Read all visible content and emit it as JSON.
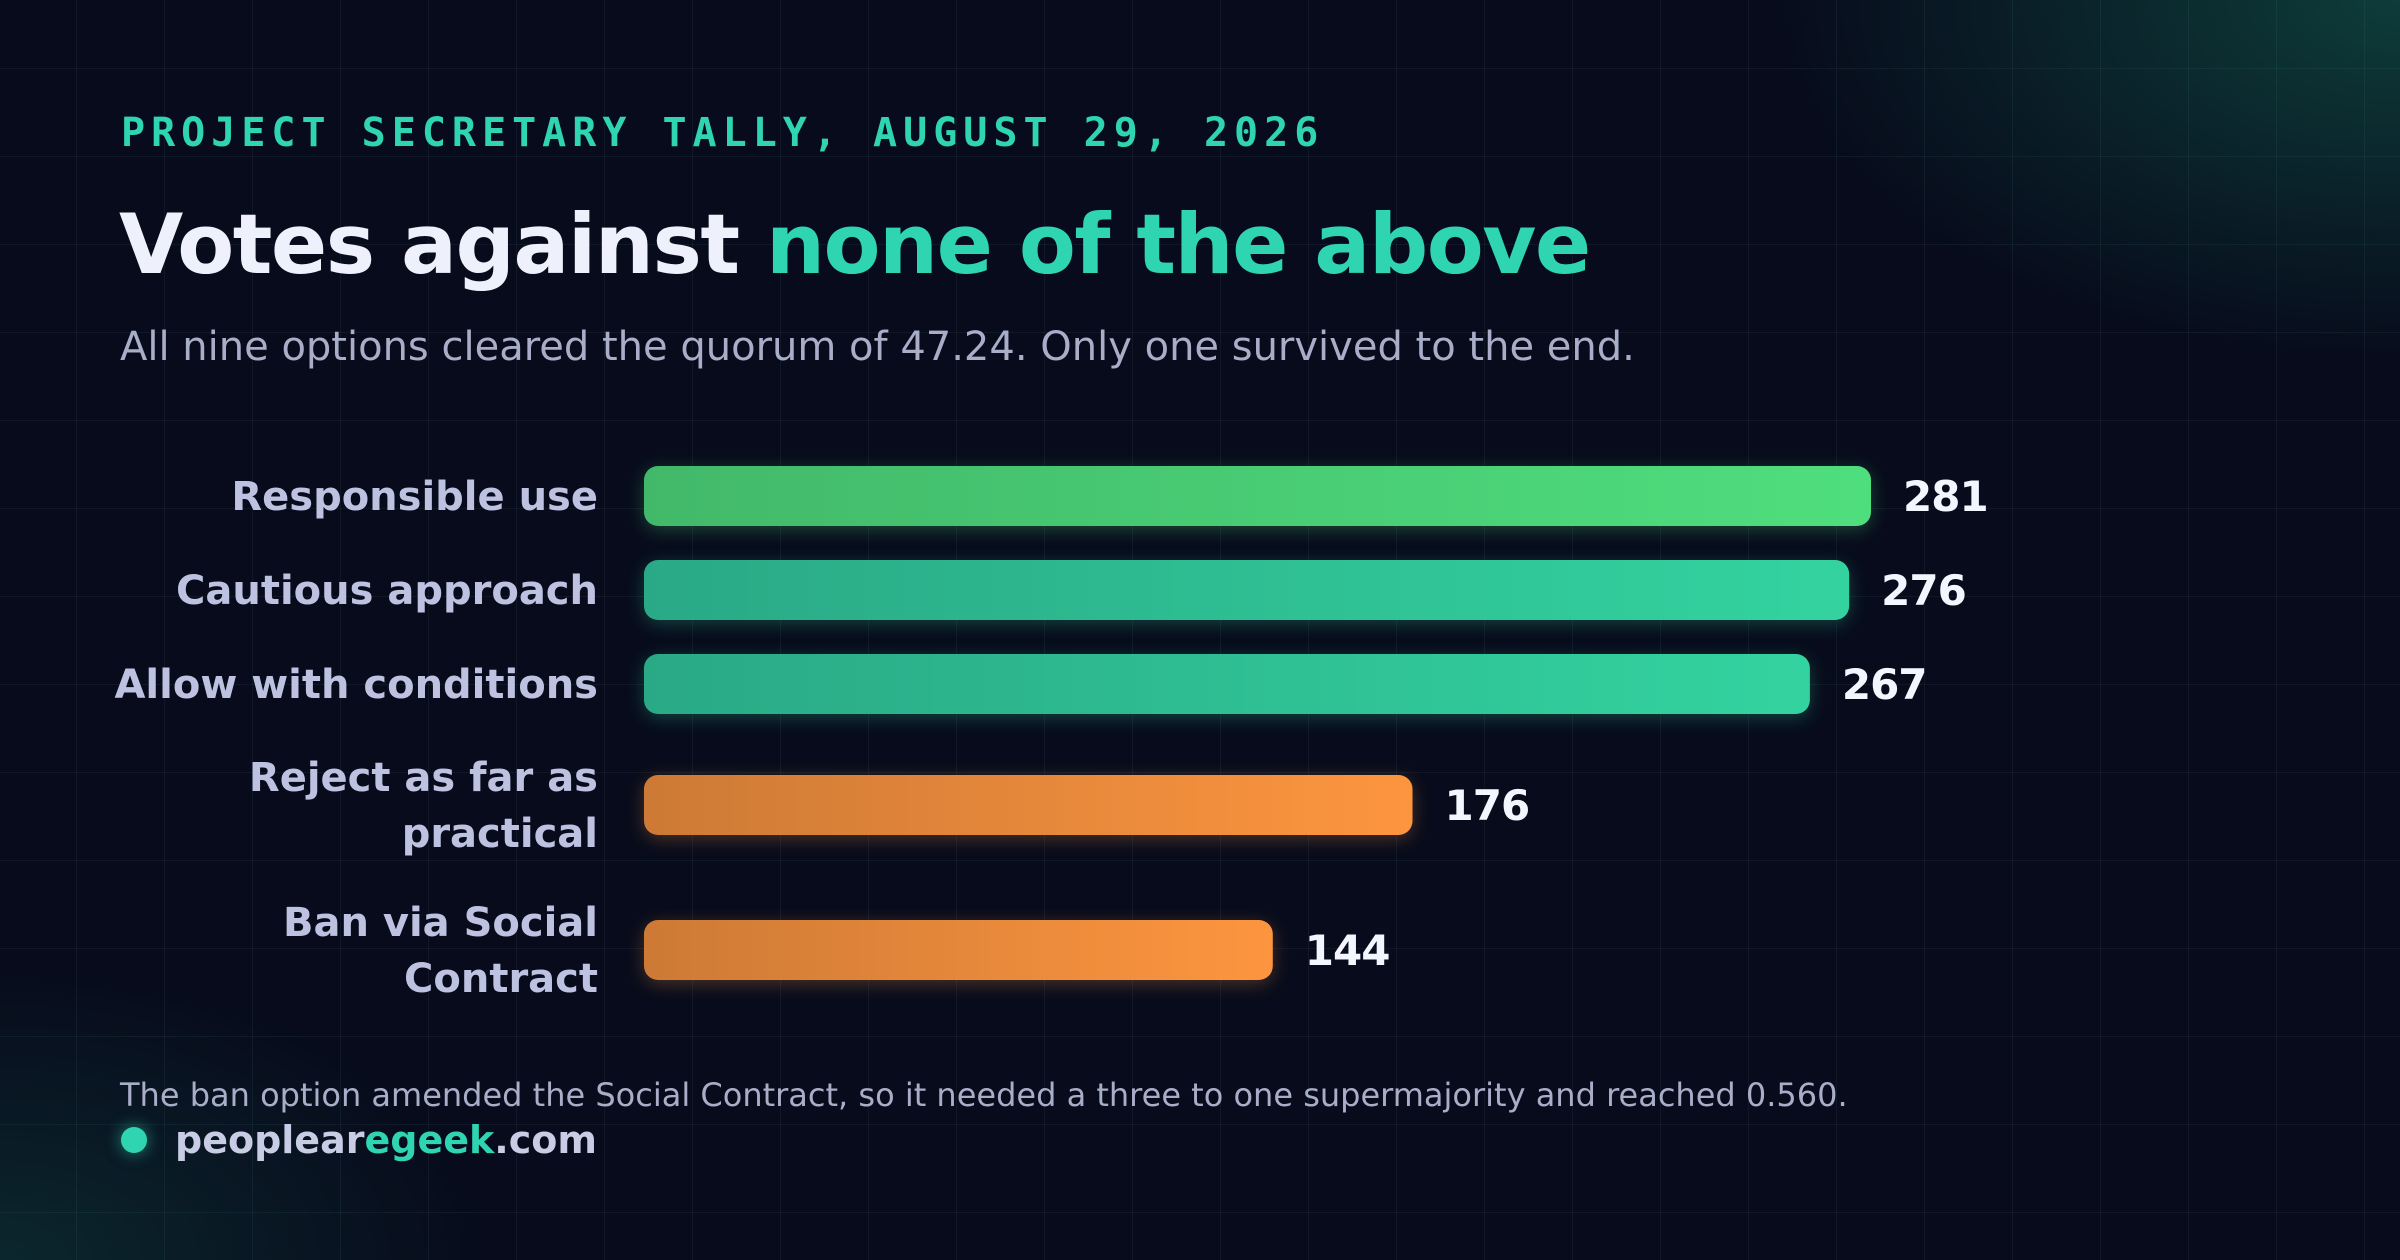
{
  "kicker": "PROJECT SECRETARY TALLY, AUGUST 29, 2026",
  "title": {
    "lead": "Votes against ",
    "accent": "none of the above"
  },
  "subtitle": "All nine options cleared the quorum of 47.24. Only one survived to the end.",
  "footnote": "The ban option amended the Social Contract, so it needed a three to one supermajority and reached 0.560.",
  "brand": {
    "pre": "peoplear",
    "hl": "egeek",
    "post": ".com"
  },
  "colors": {
    "green_top": [
      "#42b96a",
      "#4fde7e"
    ],
    "teal": [
      "#2aa986",
      "#33d39f"
    ],
    "orange": [
      "#cd7a36",
      "#fd953f"
    ],
    "accent": "#2fd4b0"
  },
  "chart_data": {
    "type": "bar",
    "orientation": "horizontal",
    "categories": [
      "Responsible use",
      "Cautious approach",
      "Allow with conditions",
      "Reject as far as practical",
      "Ban via Social Contract"
    ],
    "category_lines": [
      [
        "Responsible use"
      ],
      [
        "Cautious approach"
      ],
      [
        "Allow with conditions"
      ],
      [
        "Reject as far as",
        "practical"
      ],
      [
        "Ban via Social",
        "Contract"
      ]
    ],
    "values": [
      281,
      276,
      267,
      176,
      144
    ],
    "value_labels": [
      "281",
      "276",
      "267",
      "176",
      "144"
    ],
    "bar_colors": [
      "green_top",
      "teal",
      "teal",
      "orange",
      "orange"
    ],
    "xlim": [
      0,
      281
    ],
    "grid": true
  }
}
